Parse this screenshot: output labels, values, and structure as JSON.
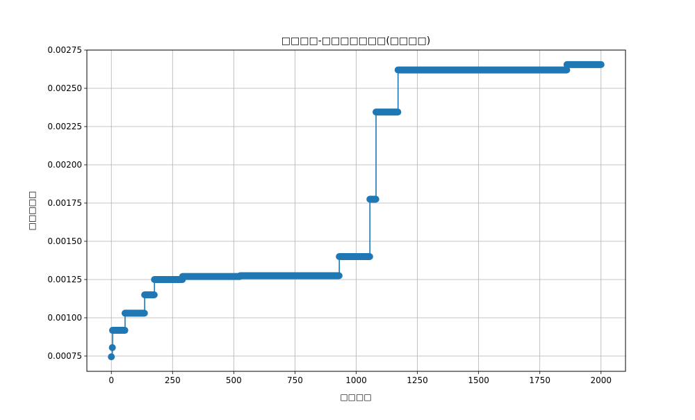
{
  "chart_data": {
    "type": "line",
    "title": "□□□□-□□□□□□□(□□□□)",
    "xlabel": "□□□□",
    "ylabel": "□□□□□",
    "xlim": [
      -100,
      2100
    ],
    "ylim": [
      0.00065,
      0.00275
    ],
    "x_ticks": [
      0,
      250,
      500,
      750,
      1000,
      1250,
      1500,
      1750,
      2000
    ],
    "x_tick_labels": [
      "0",
      "250",
      "500",
      "750",
      "1000",
      "1250",
      "1500",
      "1750",
      "2000"
    ],
    "y_ticks": [
      0.00075,
      0.001,
      0.00125,
      0.0015,
      0.00175,
      0.002,
      0.00225,
      0.0025,
      0.00275
    ],
    "y_tick_labels": [
      "0.00075",
      "0.00100",
      "0.00125",
      "0.00150",
      "0.00175",
      "0.00200",
      "0.00225",
      "0.00250",
      "0.00275"
    ],
    "grid": true,
    "series": [
      {
        "color": "#1f77b4",
        "marker": "circle",
        "drawstyle": "steps",
        "steps": [
          {
            "x_start": 0,
            "x_end": 3,
            "y": 0.000745
          },
          {
            "x_start": 4,
            "x_end": 4,
            "y": 0.000805
          },
          {
            "x_start": 5,
            "x_end": 55,
            "y": 0.000918
          },
          {
            "x_start": 56,
            "x_end": 135,
            "y": 0.00103
          },
          {
            "x_start": 136,
            "x_end": 175,
            "y": 0.00115
          },
          {
            "x_start": 176,
            "x_end": 290,
            "y": 0.00125
          },
          {
            "x_start": 291,
            "x_end": 525,
            "y": 0.00127
          },
          {
            "x_start": 526,
            "x_end": 930,
            "y": 0.001275
          },
          {
            "x_start": 931,
            "x_end": 1055,
            "y": 0.0014
          },
          {
            "x_start": 1056,
            "x_end": 1080,
            "y": 0.001775
          },
          {
            "x_start": 1081,
            "x_end": 1170,
            "y": 0.002345
          },
          {
            "x_start": 1171,
            "x_end": 1860,
            "y": 0.00262
          },
          {
            "x_start": 1861,
            "x_end": 2000,
            "y": 0.002655
          }
        ]
      }
    ]
  }
}
